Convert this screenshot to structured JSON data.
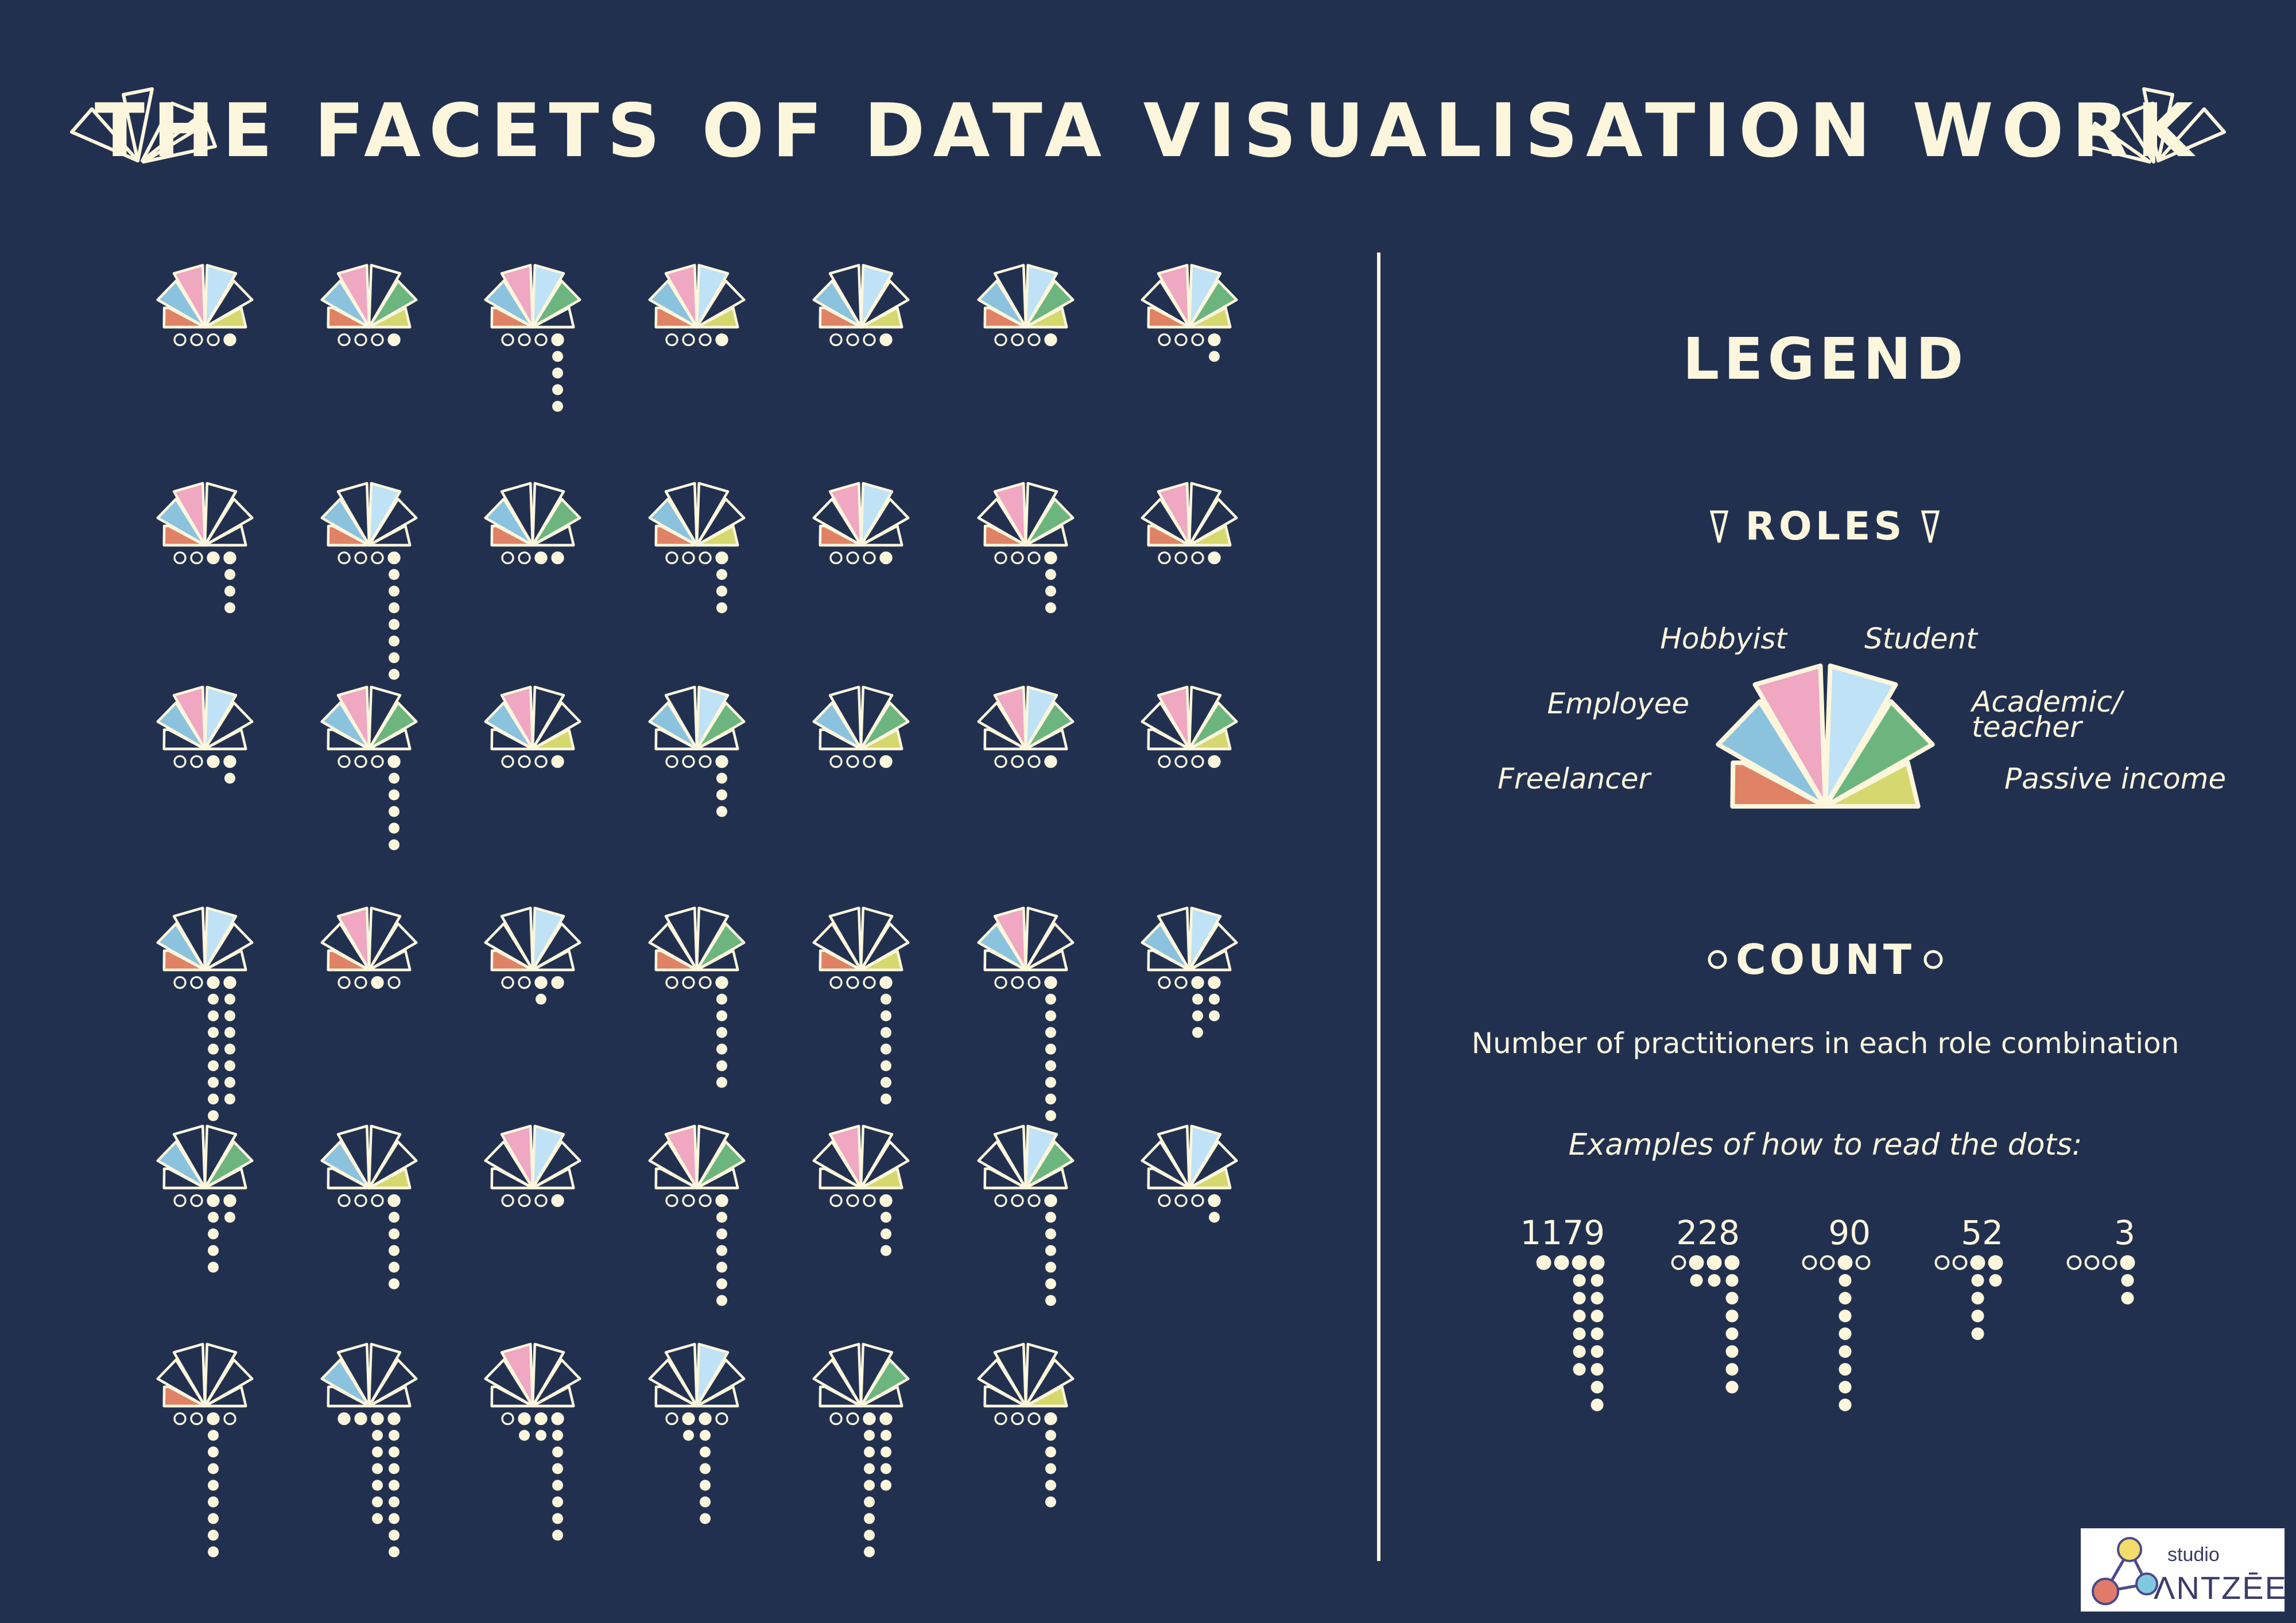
{
  "title": "THE FACETS OF DATA VISUALISATION WORK",
  "legend": {
    "heading": "LEGEND",
    "roles_heading": "ROLES",
    "count_heading": "COUNT",
    "count_desc": "Number of practitioners in each role combination",
    "examples_label": "Examples of how to read the dots:"
  },
  "colors": {
    "background": "#223050",
    "ink": "#fbf6dc",
    "Freelancer": "#e08265",
    "Employee": "#8bc3df",
    "Hobbyist": "#efa7c2",
    "Student": "#bfe2f6",
    "Academic/ teacher": "#6db57f",
    "Passive income": "#d5d86f"
  },
  "brand": {
    "small": "studio",
    "large": "ΛNTZĒE"
  },
  "chart_data": {
    "type": "glyph-matrix",
    "roles": [
      "Freelancer",
      "Employee",
      "Hobbyist",
      "Student",
      "Academic/ teacher",
      "Passive income"
    ],
    "count_encoding": "four dot columns = thousands, hundreds, tens, units; filled dots below the baseline add to each digit",
    "examples": [
      1179,
      228,
      90,
      52,
      3
    ],
    "combinations": [
      {
        "roles": [
          "Freelancer",
          "Employee",
          "Hobbyist",
          "Student",
          "Passive income"
        ],
        "count": 1
      },
      {
        "roles": [
          "Freelancer",
          "Employee",
          "Hobbyist",
          "Academic/ teacher",
          "Passive income"
        ],
        "count": 1
      },
      {
        "roles": [
          "Freelancer",
          "Employee",
          "Hobbyist",
          "Student",
          "Academic/ teacher"
        ],
        "count": 5
      },
      {
        "roles": [
          "Freelancer",
          "Employee",
          "Hobbyist",
          "Student",
          "Passive income"
        ],
        "count": 1
      },
      {
        "roles": [
          "Freelancer",
          "Employee",
          "Student",
          "Passive income"
        ],
        "count": 1
      },
      {
        "roles": [
          "Freelancer",
          "Employee",
          "Student",
          "Academic/ teacher",
          "Passive income"
        ],
        "count": 1
      },
      {
        "roles": [
          "Freelancer",
          "Hobbyist",
          "Student",
          "Academic/ teacher",
          "Passive income"
        ],
        "count": 2
      },
      {
        "roles": [
          "Freelancer",
          "Employee",
          "Hobbyist"
        ],
        "count": 14
      },
      {
        "roles": [
          "Freelancer",
          "Employee",
          "Student"
        ],
        "count": 8
      },
      {
        "roles": [
          "Freelancer",
          "Employee",
          "Academic/ teacher"
        ],
        "count": 11
      },
      {
        "roles": [
          "Freelancer",
          "Employee",
          "Passive income"
        ],
        "count": 4
      },
      {
        "roles": [
          "Freelancer",
          "Hobbyist",
          "Student"
        ],
        "count": 1
      },
      {
        "roles": [
          "Freelancer",
          "Hobbyist",
          "Academic/ teacher"
        ],
        "count": 4
      },
      {
        "roles": [
          "Freelancer",
          "Hobbyist",
          "Passive income"
        ],
        "count": 1
      },
      {
        "roles": [
          "Employee",
          "Hobbyist",
          "Student"
        ],
        "count": 12
      },
      {
        "roles": [
          "Employee",
          "Hobbyist",
          "Academic/ teacher"
        ],
        "count": 6
      },
      {
        "roles": [
          "Employee",
          "Hobbyist",
          "Passive income"
        ],
        "count": 1
      },
      {
        "roles": [
          "Employee",
          "Student",
          "Academic/ teacher"
        ],
        "count": 4
      },
      {
        "roles": [
          "Employee",
          "Academic/ teacher",
          "Passive income"
        ],
        "count": 1
      },
      {
        "roles": [
          "Hobbyist",
          "Student",
          "Academic/ teacher"
        ],
        "count": 1
      },
      {
        "roles": [
          "Hobbyist",
          "Academic/ teacher",
          "Passive income"
        ],
        "count": 1
      },
      {
        "roles": [
          "Freelancer",
          "Employee",
          "Student"
        ],
        "count": 98
      },
      {
        "roles": [
          "Freelancer",
          "Hobbyist"
        ],
        "count": 10
      },
      {
        "roles": [
          "Freelancer",
          "Student"
        ],
        "count": 21
      },
      {
        "roles": [
          "Freelancer",
          "Academic/ teacher"
        ],
        "count": 7
      },
      {
        "roles": [
          "Freelancer",
          "Passive income"
        ],
        "count": 8
      },
      {
        "roles": [
          "Employee",
          "Hobbyist"
        ],
        "count": 9
      },
      {
        "roles": [
          "Employee",
          "Student"
        ],
        "count": 43
      },
      {
        "roles": [
          "Employee",
          "Academic/ teacher"
        ],
        "count": 52
      },
      {
        "roles": [
          "Employee",
          "Passive income"
        ],
        "count": 6
      },
      {
        "roles": [
          "Hobbyist",
          "Student"
        ],
        "count": 1
      },
      {
        "roles": [
          "Hobbyist",
          "Academic/ teacher"
        ],
        "count": 7
      },
      {
        "roles": [
          "Hobbyist",
          "Passive income"
        ],
        "count": 4
      },
      {
        "roles": [
          "Student",
          "Academic/ teacher"
        ],
        "count": 7
      },
      {
        "roles": [
          "Student",
          "Passive income"
        ],
        "count": 2
      },
      {
        "roles": [
          "Freelancer"
        ],
        "count": 90
      },
      {
        "roles": [
          "Employee"
        ],
        "count": 1179
      },
      {
        "roles": [
          "Hobbyist"
        ],
        "count": 228
      },
      {
        "roles": [
          "Student"
        ],
        "count": 270
      },
      {
        "roles": [
          "Academic/ teacher"
        ],
        "count": 95
      },
      {
        "roles": [
          "Passive income"
        ],
        "count": 6
      }
    ]
  }
}
